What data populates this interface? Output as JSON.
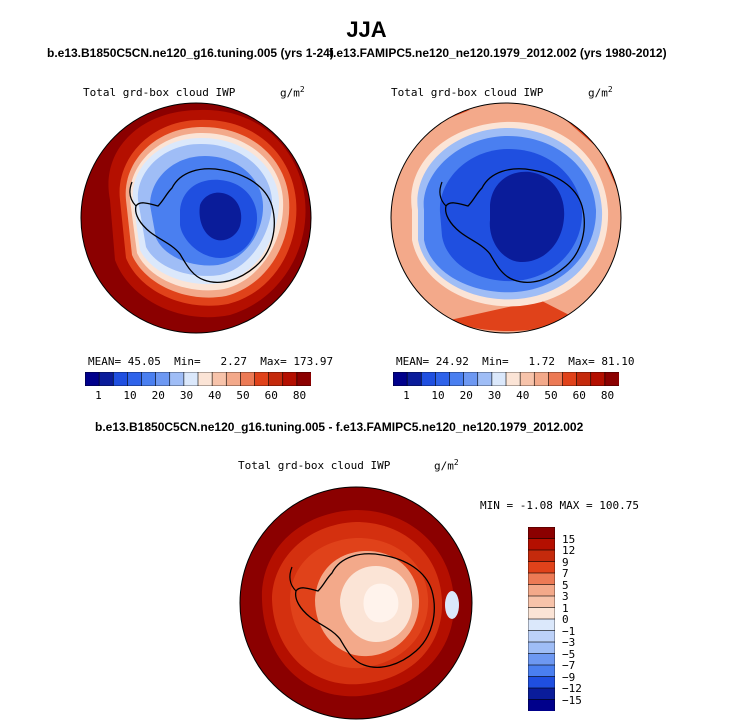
{
  "page_title": "JJA",
  "colors": {
    "dark_red": "#8b0000",
    "red": "#b40f00",
    "orange_red": "#e0421a",
    "light_orange": "#f3a98a",
    "peach": "#fbe4d6",
    "pale_blue": "#dbe8fb",
    "mid_blue": "#4a7ff0",
    "deep_blue": "#1f4fe0",
    "navy": "#0a1c9a"
  },
  "panels": [
    {
      "case_title": "b.e13.B1850C5CN.ne120_g16.tuning.005 (yrs 1-24)",
      "variable": "Total grd-box cloud IWP",
      "units_base": "g/m",
      "units_exp": "2",
      "stats": {
        "mean_label": "MEAN=",
        "mean": "45.05",
        "min_label": "Min=",
        "min": "2.27",
        "max_label": "Max=",
        "max": "173.97"
      },
      "colorbar_ticks": [
        "1",
        "10",
        "20",
        "30",
        "40",
        "50",
        "60",
        "80"
      ]
    },
    {
      "case_title": "f.e13.FAMIPC5.ne120_ne120.1979_2012.002 (yrs 1980-2012)",
      "variable": "Total grd-box cloud IWP",
      "units_base": "g/m",
      "units_exp": "2",
      "stats": {
        "mean_label": "MEAN=",
        "mean": "24.92",
        "min_label": "Min=",
        "min": "1.72",
        "max_label": "Max=",
        "max": "81.10"
      },
      "colorbar_ticks": [
        "1",
        "10",
        "20",
        "30",
        "40",
        "50",
        "60",
        "80"
      ]
    }
  ],
  "difference": {
    "case_title": "b.e13.B1850C5CN.ne120_g16.tuning.005 - f.e13.FAMIPC5.ne120_ne120.1979_2012.002",
    "variable": "Total grd-box cloud IWP",
    "units_base": "g/m",
    "units_exp": "2",
    "stats": {
      "min_label": "MIN =",
      "min": "-1.08",
      "max_label": "MAX =",
      "max": "100.75"
    },
    "colorbar_ticks": [
      "15",
      "12",
      "9",
      "7",
      "5",
      "3",
      "1",
      "0",
      "−1",
      "−3",
      "−5",
      "−7",
      "−9",
      "−12",
      "−15"
    ]
  },
  "chart_data": [
    {
      "type": "heatmap",
      "projection": "south polar stereographic",
      "title": "Total grd-box cloud IWP",
      "units": "g/m2",
      "case": "b.e13.B1850C5CN.ne120_g16.tuning.005 (yrs 1-24)",
      "season": "JJA",
      "contour_levels": [
        1,
        5,
        10,
        15,
        20,
        25,
        30,
        35,
        40,
        45,
        50,
        55,
        60,
        70,
        80
      ],
      "mean": 45.05,
      "min": 2.27,
      "max": 173.97
    },
    {
      "type": "heatmap",
      "projection": "south polar stereographic",
      "title": "Total grd-box cloud IWP",
      "units": "g/m2",
      "case": "f.e13.FAMIPC5.ne120_ne120.1979_2012.002 (yrs 1980-2012)",
      "season": "JJA",
      "contour_levels": [
        1,
        5,
        10,
        15,
        20,
        25,
        30,
        35,
        40,
        45,
        50,
        55,
        60,
        70,
        80
      ],
      "mean": 24.92,
      "min": 1.72,
      "max": 81.1
    },
    {
      "type": "heatmap",
      "projection": "south polar stereographic",
      "title": "Total grd-box cloud IWP",
      "units": "g/m2",
      "case": "b.e13.B1850C5CN.ne120_g16.tuning.005 - f.e13.FAMIPC5.ne120_ne120.1979_2012.002",
      "season": "JJA",
      "contour_levels": [
        -15,
        -12,
        -9,
        -7,
        -5,
        -3,
        -1,
        0,
        1,
        3,
        5,
        7,
        9,
        12,
        15
      ],
      "min": -1.08,
      "max": 100.75
    }
  ]
}
